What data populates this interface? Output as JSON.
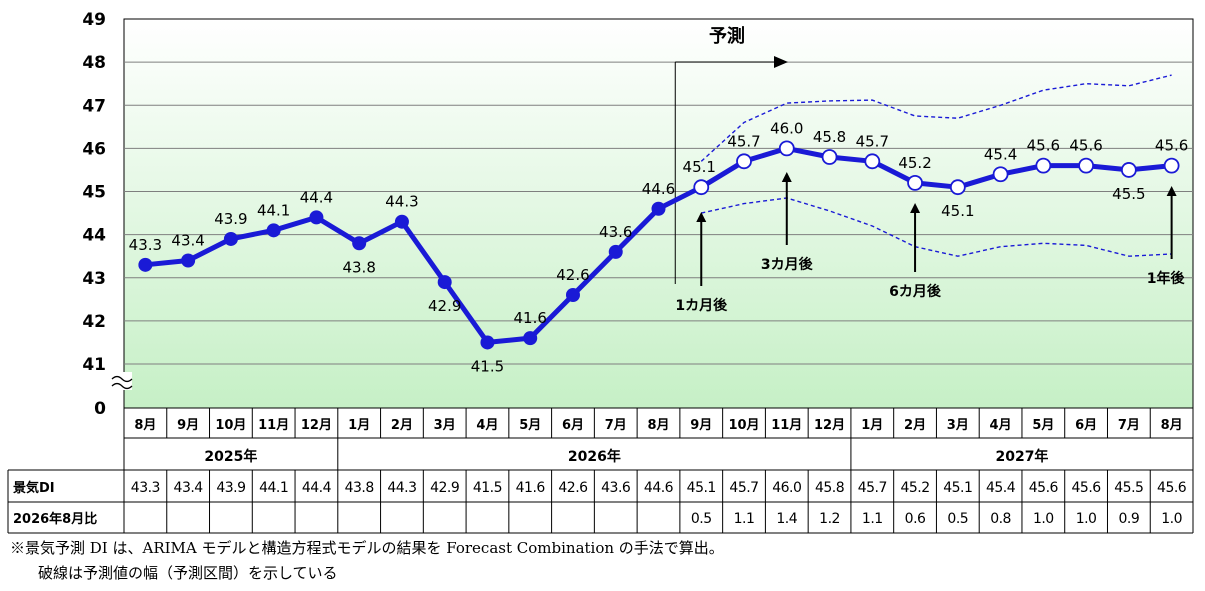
{
  "chart_data": {
    "type": "line",
    "months": [
      "8月",
      "9月",
      "10月",
      "11月",
      "12月",
      "1月",
      "2月",
      "3月",
      "4月",
      "5月",
      "6月",
      "7月",
      "8月",
      "9月",
      "10月",
      "11月",
      "12月",
      "1月",
      "2月",
      "3月",
      "4月",
      "5月",
      "6月",
      "7月",
      "8月"
    ],
    "years": [
      {
        "label": "2025年",
        "start": 0,
        "end": 4
      },
      {
        "label": "2026年",
        "start": 5,
        "end": 16
      },
      {
        "label": "2027年",
        "start": 17,
        "end": 24
      }
    ],
    "values": [
      43.3,
      43.4,
      43.9,
      44.1,
      44.4,
      43.8,
      44.3,
      42.9,
      41.5,
      41.6,
      42.6,
      43.6,
      44.6,
      45.1,
      45.7,
      46.0,
      45.8,
      45.7,
      45.2,
      45.1,
      45.4,
      45.6,
      45.6,
      45.5,
      45.6
    ],
    "value_labels": [
      "43.3",
      "43.4",
      "43.9",
      "44.1",
      "44.4",
      "43.8",
      "44.3",
      "42.9",
      "41.5",
      "41.6",
      "42.6",
      "43.6",
      "44.6",
      "45.1",
      "45.7",
      "46.0",
      "45.8",
      "45.7",
      "45.2",
      "45.1",
      "45.4",
      "45.6",
      "45.6",
      "45.5",
      "45.6"
    ],
    "forecast_start_index": 13,
    "upper_band": [
      {
        "x": 13.0,
        "y": 45.7
      },
      {
        "x": 14.0,
        "y": 46.6
      },
      {
        "x": 15.0,
        "y": 47.05
      },
      {
        "x": 16.0,
        "y": 47.1
      },
      {
        "x": 17.0,
        "y": 47.12
      },
      {
        "x": 18.0,
        "y": 46.75
      },
      {
        "x": 19.0,
        "y": 46.7
      },
      {
        "x": 20.0,
        "y": 47.0
      },
      {
        "x": 21.0,
        "y": 47.35
      },
      {
        "x": 22.0,
        "y": 47.5
      },
      {
        "x": 23.0,
        "y": 47.45
      },
      {
        "x": 24.0,
        "y": 47.7
      }
    ],
    "lower_band": [
      {
        "x": 13.0,
        "y": 44.5
      },
      {
        "x": 14.0,
        "y": 44.72
      },
      {
        "x": 15.0,
        "y": 44.85
      },
      {
        "x": 16.0,
        "y": 44.55
      },
      {
        "x": 17.0,
        "y": 44.2
      },
      {
        "x": 18.0,
        "y": 43.72
      },
      {
        "x": 19.0,
        "y": 43.5
      },
      {
        "x": 20.0,
        "y": 43.72
      },
      {
        "x": 21.0,
        "y": 43.8
      },
      {
        "x": 22.0,
        "y": 43.75
      },
      {
        "x": 23.0,
        "y": 43.5
      },
      {
        "x": 24.0,
        "y": 43.55
      }
    ],
    "y_ticks": [
      {
        "label": "49",
        "v": 49
      },
      {
        "label": "48",
        "v": 48
      },
      {
        "label": "47",
        "v": 47
      },
      {
        "label": "46",
        "v": 46
      },
      {
        "label": "45",
        "v": 45
      },
      {
        "label": "44",
        "v": 44
      },
      {
        "label": "43",
        "v": 43
      },
      {
        "label": "42",
        "v": 42
      },
      {
        "label": "41",
        "v": 41
      }
    ],
    "y_zero_label": "0",
    "ylim": [
      40,
      49
    ],
    "axis_break": true,
    "grid": true,
    "colors": {
      "line": "#1a1ad6",
      "band": "#1a1ad6",
      "bg_top": "#ffffff",
      "bg_bottom": "#c6f0c6",
      "grid": "#7f7f7f"
    },
    "forecast_label": "予測",
    "annotations": [
      {
        "text": "1カ月後",
        "index": 13
      },
      {
        "text": "3カ月後",
        "index": 15
      },
      {
        "text": "6カ月後",
        "index": 18
      },
      {
        "text": "1年後",
        "index": 24
      }
    ],
    "table": {
      "row1_header": "景気DI",
      "row1": [
        "43.3",
        "43.4",
        "43.9",
        "44.1",
        "44.4",
        "43.8",
        "44.3",
        "42.9",
        "41.5",
        "41.6",
        "42.6",
        "43.6",
        "44.6",
        "45.1",
        "45.7",
        "46.0",
        "45.8",
        "45.7",
        "45.2",
        "45.1",
        "45.4",
        "45.6",
        "45.6",
        "45.5",
        "45.6"
      ],
      "row2_header": "2026年8月比",
      "row2": [
        "",
        "",
        "",
        "",
        "",
        "",
        "",
        "",
        "",
        "",
        "",
        "",
        "",
        "0.5",
        "1.1",
        "1.4",
        "1.2",
        "1.1",
        "0.6",
        "0.5",
        "0.8",
        "1.0",
        "1.0",
        "0.9",
        "1.0"
      ]
    }
  },
  "notes": {
    "line1": "※景気予測 DI は、ARIMA モデルと構造方程式モデルの結果を Forecast Combination の手法で算出。",
    "line2": "破線は予測値の幅（予測区間）を示している"
  }
}
